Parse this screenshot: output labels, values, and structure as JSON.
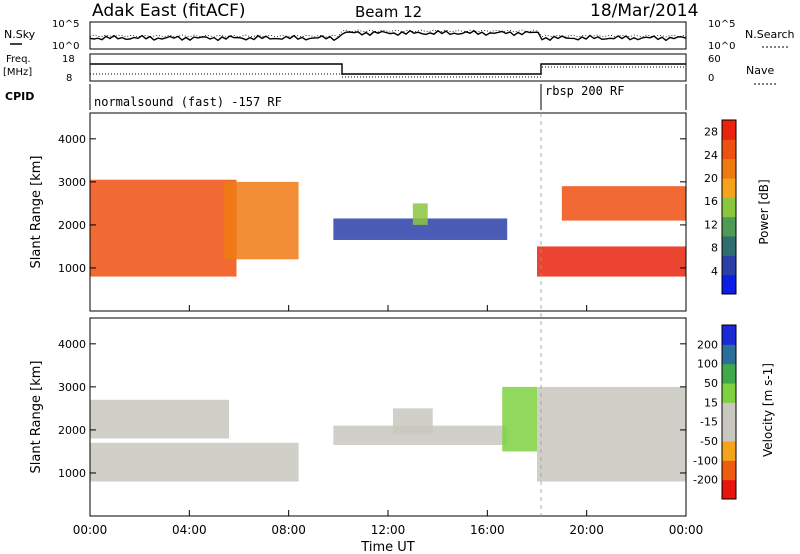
{
  "header": {
    "station": "Adak East (fitACF)",
    "beam": "Beam 12",
    "date": "18/Mar/2014"
  },
  "top_panels": {
    "nsky_label": "N.Sky",
    "nsearch_label": "N.Search",
    "noise_ticks": [
      "10^5",
      "10^0"
    ],
    "freq_label": "Freq.",
    "freq_unit": "[MHz]",
    "freq_ticks": [
      "18",
      "8"
    ],
    "nave_label": "Nave",
    "nave_ticks": [
      "60",
      "0"
    ],
    "cpid_label": "CPID"
  },
  "cpid_segments": [
    {
      "label": "normalsound (fast) -157 RF",
      "start_hour": 0
    },
    {
      "label": "rbsp 200 RF",
      "start_hour": 18
    }
  ],
  "chart_data": [
    {
      "type": "heatmap",
      "name": "power",
      "ylabel": "Slant Range [km]",
      "y_ticks": [
        1000,
        2000,
        3000,
        4000
      ],
      "ylim": [
        0,
        4600
      ],
      "xlim_hours": [
        0,
        24
      ],
      "colorbar": {
        "label": "Power [dB]",
        "ticks": [
          4,
          8,
          12,
          16,
          20,
          24,
          28
        ],
        "range": [
          0,
          30
        ],
        "colors": [
          "#0a1ee6",
          "#2a3fa8",
          "#2f6e6e",
          "#4f9a55",
          "#8cc63f",
          "#f5a31a",
          "#f07a12",
          "#ee5010",
          "#e8240e"
        ]
      },
      "regions": [
        {
          "t0": 0.0,
          "t1": 5.9,
          "r0": 800,
          "r1": 3050,
          "value": 26
        },
        {
          "t0": 5.4,
          "t1": 8.4,
          "r0": 1200,
          "r1": 3000,
          "value": 20
        },
        {
          "t0": 9.8,
          "t1": 16.8,
          "r0": 1650,
          "r1": 2150,
          "value": 6
        },
        {
          "t0": 13.0,
          "t1": 13.6,
          "r0": 2000,
          "r1": 2500,
          "value": 14
        },
        {
          "t0": 18.0,
          "t1": 24.0,
          "r0": 800,
          "r1": 1500,
          "value": 28
        },
        {
          "t0": 19.0,
          "t1": 24.0,
          "r0": 2100,
          "r1": 2900,
          "value": 24
        }
      ]
    },
    {
      "type": "heatmap",
      "name": "velocity",
      "ylabel": "Slant Range [km]",
      "y_ticks": [
        1000,
        2000,
        3000,
        4000
      ],
      "ylim": [
        0,
        4600
      ],
      "xlim_hours": [
        0,
        24
      ],
      "x_ticks": [
        "00:00",
        "04:00",
        "08:00",
        "12:00",
        "16:00",
        "20:00",
        "00:00"
      ],
      "xlabel": "Time UT",
      "colorbar": {
        "label": "Velocity [m s-1]",
        "ticks": [
          200,
          100,
          50,
          15,
          -15,
          -50,
          -100,
          -200
        ],
        "range": [
          -250,
          250
        ],
        "colors": [
          "#e8140e",
          "#ee5a10",
          "#f5a31a",
          "#c8c8c0",
          "#c8c8c0",
          "#7fd13f",
          "#3ea84a",
          "#2a6e9a",
          "#1a2ad6"
        ]
      },
      "regions": [
        {
          "t0": 0.0,
          "t1": 8.4,
          "r0": 800,
          "r1": 1700,
          "value": 0
        },
        {
          "t0": 0.0,
          "t1": 5.6,
          "r0": 1800,
          "r1": 2700,
          "value": 10
        },
        {
          "t0": 9.8,
          "t1": 16.8,
          "r0": 1650,
          "r1": 2100,
          "value": -40
        },
        {
          "t0": 12.2,
          "t1": 13.8,
          "r0": 1900,
          "r1": 2500,
          "value": -80
        },
        {
          "t0": 16.6,
          "t1": 18.0,
          "r0": 1500,
          "r1": 3000,
          "value": 60
        },
        {
          "t0": 18.0,
          "t1": 24.0,
          "r0": 800,
          "r1": 3000,
          "value": 0
        }
      ]
    }
  ]
}
